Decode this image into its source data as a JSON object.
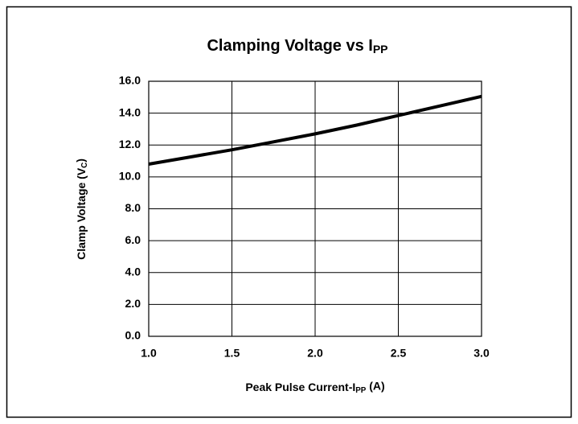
{
  "chart_data": {
    "type": "line",
    "title": [
      {
        "text": "Clamping Voltage vs I"
      },
      {
        "text": "PP",
        "sub": true
      }
    ],
    "xlabel": [
      {
        "text": "Peak Pulse Current-I"
      },
      {
        "text": "PP",
        "sub": true
      },
      {
        "text": " (A)"
      }
    ],
    "ylabel": [
      {
        "text": "Clamp Voltage (V"
      },
      {
        "text": "C",
        "sub": true
      },
      {
        "text": ")"
      }
    ],
    "x": [
      1.0,
      1.25,
      1.5,
      1.75,
      2.0,
      2.25,
      2.5,
      2.75,
      3.0
    ],
    "series": [
      {
        "color": "#000000",
        "values": [
          10.8,
          11.25,
          11.7,
          12.2,
          12.7,
          13.25,
          13.85,
          14.45,
          15.05
        ]
      }
    ],
    "xlim": [
      1,
      3
    ],
    "xticks": [
      {
        "value": 1,
        "label": "1.0"
      },
      {
        "value": 1.5,
        "label": "1.5"
      },
      {
        "value": 2,
        "label": "2.0"
      },
      {
        "value": 2.5,
        "label": "2.5"
      },
      {
        "value": 3,
        "label": "3.0"
      }
    ],
    "ylim": [
      0,
      16
    ],
    "yticks": [
      {
        "value": 0,
        "label": "0.0"
      },
      {
        "value": 2,
        "label": "2.0"
      },
      {
        "value": 4,
        "label": "4.0"
      },
      {
        "value": 6,
        "label": "6.0"
      },
      {
        "value": 8,
        "label": "8.0"
      },
      {
        "value": 10,
        "label": "10.0"
      },
      {
        "value": 12,
        "label": "12.0"
      },
      {
        "value": 14,
        "label": "14.0"
      },
      {
        "value": 16,
        "label": "16.0"
      }
    ],
    "grid": true
  }
}
